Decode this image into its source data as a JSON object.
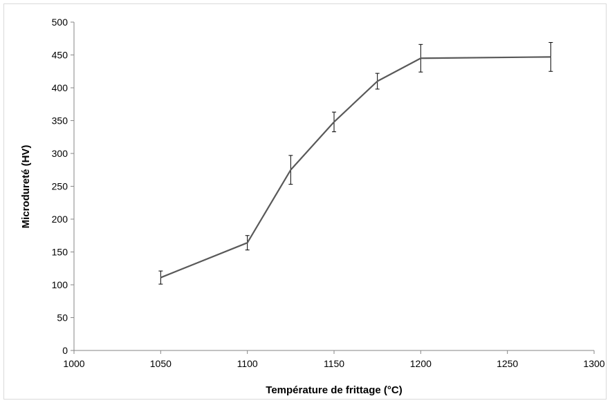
{
  "chart_data": {
    "type": "line",
    "title": "",
    "xlabel": "Température de frittage (°C)",
    "ylabel": "Microdureté (HV)",
    "xlim": [
      1000,
      1300
    ],
    "ylim": [
      0,
      500
    ],
    "xticks": [
      1000,
      1050,
      1100,
      1150,
      1200,
      1250,
      1300
    ],
    "yticks": [
      0,
      50,
      100,
      150,
      200,
      250,
      300,
      350,
      400,
      450,
      500
    ],
    "grid": false,
    "legend": "none",
    "series": [
      {
        "color": "#595959",
        "x": [
          1050,
          1100,
          1125,
          1150,
          1175,
          1200,
          1275
        ],
        "y": [
          111,
          164,
          275,
          348,
          410,
          445,
          447
        ],
        "error": [
          10,
          11,
          22,
          15,
          12,
          21,
          22
        ]
      }
    ]
  }
}
